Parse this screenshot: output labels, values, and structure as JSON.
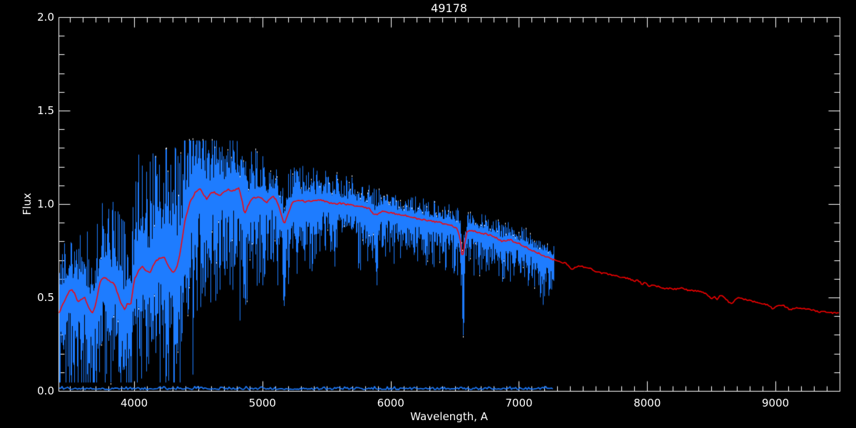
{
  "chart_data": {
    "type": "line",
    "title": "49178",
    "xlabel": "Wavelength, A",
    "ylabel": "Flux",
    "xlim": [
      3410,
      9500
    ],
    "ylim": [
      0.0,
      2.0
    ],
    "grid": false,
    "legend": "none",
    "background_color": "#000000",
    "axis_color": "#ffffff",
    "x_minor_step": 100,
    "y_minor_step": 0.1,
    "x_ticks": [
      {
        "value": 4000,
        "label": "4000"
      },
      {
        "value": 5000,
        "label": "5000"
      },
      {
        "value": 6000,
        "label": "6000"
      },
      {
        "value": 7000,
        "label": "7000"
      },
      {
        "value": 8000,
        "label": "8000"
      },
      {
        "value": 9000,
        "label": "9000"
      }
    ],
    "y_ticks": [
      {
        "value": 2.0,
        "label": "2.0"
      },
      {
        "value": 1.5,
        "label": "1.5"
      },
      {
        "value": 1.0,
        "label": "1.0"
      },
      {
        "value": 0.5,
        "label": "0.5"
      },
      {
        "value": 0.0,
        "label": "0.0"
      }
    ],
    "series": [
      {
        "name": "observed-spectrum",
        "type": "noisy-spectrum",
        "color": "#1e7cff",
        "x_start": 3418,
        "x_end": 7272,
        "noise_envelope": [
          [
            3420,
            0.2,
            0.32
          ],
          [
            3550,
            0.23,
            0.35
          ],
          [
            3700,
            0.24,
            0.37
          ],
          [
            3850,
            0.27,
            0.37
          ],
          [
            3950,
            0.29,
            0.35
          ],
          [
            4050,
            0.4,
            0.4
          ],
          [
            4200,
            0.43,
            0.42
          ],
          [
            4330,
            0.4,
            0.44
          ],
          [
            4450,
            0.29,
            0.38
          ],
          [
            4600,
            0.23,
            0.34
          ],
          [
            4750,
            0.19,
            0.31
          ],
          [
            4900,
            0.16,
            0.28
          ],
          [
            5100,
            0.14,
            0.26
          ],
          [
            5300,
            0.115,
            0.23
          ],
          [
            5500,
            0.1,
            0.2
          ],
          [
            5700,
            0.09,
            0.18
          ],
          [
            5900,
            0.082,
            0.165
          ],
          [
            6100,
            0.073,
            0.15
          ],
          [
            6300,
            0.068,
            0.14
          ],
          [
            6500,
            0.068,
            0.145
          ],
          [
            6700,
            0.063,
            0.138
          ],
          [
            6900,
            0.058,
            0.132
          ],
          [
            7100,
            0.058,
            0.138
          ],
          [
            7272,
            0.053,
            0.128
          ]
        ]
      },
      {
        "name": "model-spectrum",
        "type": "line",
        "color": "#ff0000",
        "points": [
          [
            3415,
            0.42
          ],
          [
            3445,
            0.465
          ],
          [
            3470,
            0.5
          ],
          [
            3500,
            0.545
          ],
          [
            3530,
            0.53
          ],
          [
            3558,
            0.48
          ],
          [
            3585,
            0.487
          ],
          [
            3612,
            0.505
          ],
          [
            3640,
            0.455
          ],
          [
            3665,
            0.425
          ],
          [
            3678,
            0.412
          ],
          [
            3705,
            0.48
          ],
          [
            3735,
            0.585
          ],
          [
            3762,
            0.608
          ],
          [
            3790,
            0.6
          ],
          [
            3818,
            0.582
          ],
          [
            3845,
            0.572
          ],
          [
            3872,
            0.52
          ],
          [
            3900,
            0.462
          ],
          [
            3928,
            0.436
          ],
          [
            3950,
            0.472
          ],
          [
            3972,
            0.455
          ],
          [
            4000,
            0.592
          ],
          [
            4030,
            0.64
          ],
          [
            4065,
            0.668
          ],
          [
            4098,
            0.64
          ],
          [
            4122,
            0.63
          ],
          [
            4158,
            0.685
          ],
          [
            4195,
            0.71
          ],
          [
            4232,
            0.718
          ],
          [
            4268,
            0.668
          ],
          [
            4300,
            0.632
          ],
          [
            4330,
            0.655
          ],
          [
            4360,
            0.745
          ],
          [
            4398,
            0.92
          ],
          [
            4438,
            1.015
          ],
          [
            4475,
            1.06
          ],
          [
            4510,
            1.082
          ],
          [
            4542,
            1.05
          ],
          [
            4565,
            1.028
          ],
          [
            4598,
            1.058
          ],
          [
            4620,
            1.065
          ],
          [
            4650,
            1.052
          ],
          [
            4675,
            1.047
          ],
          [
            4702,
            1.063
          ],
          [
            4730,
            1.078
          ],
          [
            4758,
            1.068
          ],
          [
            4790,
            1.078
          ],
          [
            4815,
            1.085
          ],
          [
            4840,
            1.025
          ],
          [
            4860,
            0.945
          ],
          [
            4888,
            0.99
          ],
          [
            4915,
            1.026
          ],
          [
            4945,
            1.035
          ],
          [
            4970,
            1.04
          ],
          [
            5002,
            1.028
          ],
          [
            5035,
            1.008
          ],
          [
            5062,
            1.03
          ],
          [
            5082,
            1.045
          ],
          [
            5110,
            1.02
          ],
          [
            5140,
            0.958
          ],
          [
            5170,
            0.888
          ],
          [
            5200,
            0.952
          ],
          [
            5232,
            1.005
          ],
          [
            5265,
            1.018
          ],
          [
            5300,
            1.02
          ],
          [
            5340,
            1.012
          ],
          [
            5380,
            1.016
          ],
          [
            5422,
            1.02
          ],
          [
            5465,
            1.02
          ],
          [
            5510,
            1.008
          ],
          [
            5558,
            1.0
          ],
          [
            5608,
            1.004
          ],
          [
            5655,
            0.998
          ],
          [
            5702,
            0.994
          ],
          [
            5748,
            0.988
          ],
          [
            5792,
            0.984
          ],
          [
            5835,
            0.974
          ],
          [
            5876,
            0.94
          ],
          [
            5910,
            0.952
          ],
          [
            5932,
            0.96
          ],
          [
            5975,
            0.955
          ],
          [
            6020,
            0.95
          ],
          [
            6068,
            0.944
          ],
          [
            6115,
            0.938
          ],
          [
            6162,
            0.93
          ],
          [
            6210,
            0.922
          ],
          [
            6256,
            0.916
          ],
          [
            6300,
            0.911
          ],
          [
            6345,
            0.905
          ],
          [
            6390,
            0.9
          ],
          [
            6438,
            0.89
          ],
          [
            6484,
            0.882
          ],
          [
            6520,
            0.868
          ],
          [
            6545,
            0.8
          ],
          [
            6560,
            0.7
          ],
          [
            6575,
            0.78
          ],
          [
            6592,
            0.845
          ],
          [
            6612,
            0.862
          ],
          [
            6650,
            0.855
          ],
          [
            6684,
            0.845
          ],
          [
            6720,
            0.842
          ],
          [
            6760,
            0.837
          ],
          [
            6800,
            0.827
          ],
          [
            6840,
            0.814
          ],
          [
            6868,
            0.8
          ],
          [
            6898,
            0.806
          ],
          [
            6930,
            0.81
          ],
          [
            6968,
            0.795
          ],
          [
            7010,
            0.785
          ],
          [
            7058,
            0.768
          ],
          [
            7108,
            0.75
          ],
          [
            7158,
            0.735
          ],
          [
            7208,
            0.718
          ],
          [
            7258,
            0.705
          ],
          [
            7300,
            0.695
          ],
          [
            7332,
            0.69
          ],
          [
            7362,
            0.684
          ],
          [
            7395,
            0.66
          ],
          [
            7420,
            0.652
          ],
          [
            7448,
            0.667
          ],
          [
            7482,
            0.667
          ],
          [
            7520,
            0.661
          ],
          [
            7558,
            0.654
          ],
          [
            7598,
            0.64
          ],
          [
            7630,
            0.631
          ],
          [
            7665,
            0.628
          ],
          [
            7700,
            0.624
          ],
          [
            7740,
            0.618
          ],
          [
            7780,
            0.612
          ],
          [
            7820,
            0.607
          ],
          [
            7858,
            0.6
          ],
          [
            7898,
            0.588
          ],
          [
            7928,
            0.592
          ],
          [
            7958,
            0.572
          ],
          [
            7988,
            0.578
          ],
          [
            8018,
            0.561
          ],
          [
            8048,
            0.57
          ],
          [
            8090,
            0.556
          ],
          [
            8130,
            0.549
          ],
          [
            8183,
            0.548
          ],
          [
            8222,
            0.545
          ],
          [
            8266,
            0.552
          ],
          [
            8310,
            0.54
          ],
          [
            8360,
            0.537
          ],
          [
            8405,
            0.533
          ],
          [
            8460,
            0.52
          ],
          [
            8500,
            0.49
          ],
          [
            8522,
            0.51
          ],
          [
            8545,
            0.49
          ],
          [
            8572,
            0.512
          ],
          [
            8600,
            0.5
          ],
          [
            8628,
            0.48
          ],
          [
            8662,
            0.467
          ],
          [
            8692,
            0.49
          ],
          [
            8722,
            0.5
          ],
          [
            8760,
            0.49
          ],
          [
            8800,
            0.483
          ],
          [
            8850,
            0.475
          ],
          [
            8900,
            0.468
          ],
          [
            8940,
            0.46
          ],
          [
            8978,
            0.44
          ],
          [
            9012,
            0.452
          ],
          [
            9056,
            0.46
          ],
          [
            9090,
            0.445
          ],
          [
            9112,
            0.436
          ],
          [
            9150,
            0.442
          ],
          [
            9185,
            0.445
          ],
          [
            9222,
            0.44
          ],
          [
            9262,
            0.437
          ],
          [
            9300,
            0.432
          ],
          [
            9340,
            0.42
          ],
          [
            9372,
            0.428
          ],
          [
            9410,
            0.422
          ],
          [
            9450,
            0.418
          ],
          [
            9498,
            0.415
          ]
        ]
      },
      {
        "name": "error-spectrum",
        "type": "line",
        "color": "#1e7cff",
        "x_start": 3418,
        "x_end": 7272,
        "base_level": 0.007,
        "noise": 0.007
      },
      {
        "name": "masked-pixel-dots",
        "type": "dots",
        "color": "#ffffff",
        "top_probability_blue_end": 0.03,
        "top_probability_mid": 0.1,
        "top_probability_red_end": 0.2,
        "bottom_probability": 0.05,
        "zone_limits": [
          4150,
          5500
        ]
      }
    ],
    "absorption_lines": [
      [
        3735,
        0.33,
        1
      ],
      [
        3752,
        0.35,
        1
      ],
      [
        3770,
        0.3,
        1
      ],
      [
        3798,
        0.28,
        1
      ],
      [
        3820,
        0.32,
        1
      ],
      [
        3835,
        0.25,
        1
      ],
      [
        3860,
        0.33,
        1
      ],
      [
        3886,
        0.26,
        1
      ],
      [
        3905,
        0.3,
        1
      ],
      [
        3934,
        0.13,
        1.6
      ],
      [
        3964,
        0.135,
        1.6
      ],
      [
        3995,
        0.34,
        1
      ],
      [
        4026,
        0.38,
        1
      ],
      [
        4045,
        0.3,
        1
      ],
      [
        4063,
        0.39,
        1
      ],
      [
        4094,
        0.27,
        1
      ],
      [
        4122,
        0.42,
        1
      ],
      [
        4144,
        0.42,
        1
      ],
      [
        4170,
        0.45,
        1
      ],
      [
        4202,
        0.44,
        1
      ],
      [
        4227,
        0.4,
        1
      ],
      [
        4260,
        0.45,
        1
      ],
      [
        4290,
        0.44,
        1
      ],
      [
        4310,
        0.42,
        1
      ],
      [
        4326,
        0.14,
        1.2
      ],
      [
        4344,
        0.42,
        1
      ],
      [
        4383,
        0.47,
        1
      ],
      [
        4405,
        0.47,
        1
      ],
      [
        4455,
        0.55,
        1
      ],
      [
        4481,
        0.58,
        1
      ],
      [
        4530,
        0.52,
        1
      ],
      [
        4571,
        0.6,
        1
      ],
      [
        4620,
        0.62,
        1
      ],
      [
        4668,
        0.52,
        1
      ],
      [
        4703,
        0.65,
        1
      ],
      [
        4755,
        0.66,
        1
      ],
      [
        4861,
        0.48,
        1.4
      ],
      [
        4920,
        0.65,
        1
      ],
      [
        4957,
        0.68,
        1
      ],
      [
        5015,
        0.62,
        1
      ],
      [
        5041,
        0.7,
        1
      ],
      [
        5110,
        0.68,
        1
      ],
      [
        5168,
        0.44,
        2.2
      ],
      [
        5205,
        0.64,
        1
      ],
      [
        5270,
        0.6,
        1
      ],
      [
        5330,
        0.69,
        1
      ],
      [
        5405,
        0.7,
        1
      ],
      [
        5446,
        0.72,
        1
      ],
      [
        5530,
        0.74,
        1
      ],
      [
        5890,
        0.55,
        1.6
      ],
      [
        5950,
        0.78,
        1
      ],
      [
        6122,
        0.745,
        1
      ],
      [
        6162,
        0.76,
        1
      ],
      [
        6277,
        0.67,
        1
      ],
      [
        6320,
        0.72,
        1
      ],
      [
        6380,
        0.69,
        1
      ],
      [
        6495,
        0.72,
        1
      ],
      [
        6563,
        0.28,
        1.4
      ],
      [
        6620,
        0.7,
        1
      ],
      [
        6717,
        0.72,
        1
      ],
      [
        6867,
        0.58,
        1.4
      ],
      [
        6884,
        0.6,
        1
      ],
      [
        7000,
        0.68,
        1
      ],
      [
        7065,
        0.66,
        1
      ],
      [
        7120,
        0.55,
        1
      ],
      [
        7164,
        0.5,
        1
      ],
      [
        7186,
        0.46,
        1
      ],
      [
        7210,
        0.58,
        1
      ],
      [
        7230,
        0.5,
        1
      ],
      [
        7252,
        0.52,
        1
      ]
    ],
    "seed": 49178
  }
}
